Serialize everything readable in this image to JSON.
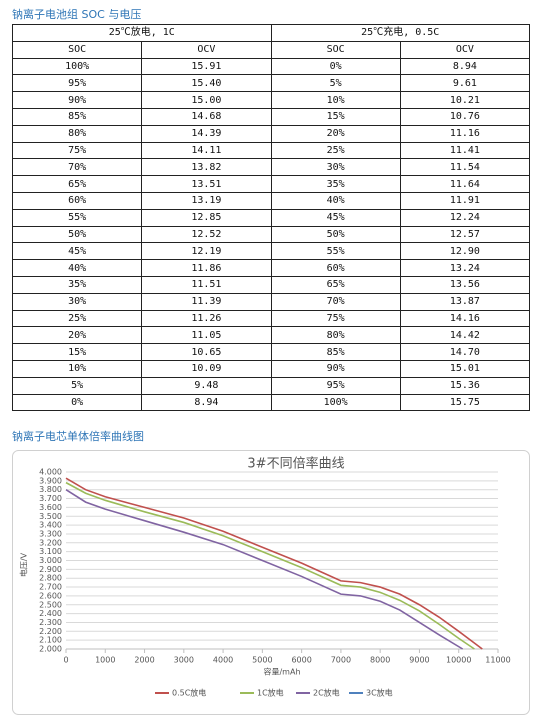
{
  "header": {
    "title": "钠离子电池组 SOC 与电压"
  },
  "table": {
    "groups": [
      "25℃放电, 1C",
      "25℃充电, 0.5C"
    ],
    "columns": [
      "SOC",
      "OCV",
      "SOC",
      "OCV"
    ],
    "rows": [
      [
        "100%",
        "15.91",
        "0%",
        "8.94"
      ],
      [
        "95%",
        "15.40",
        "5%",
        "9.61"
      ],
      [
        "90%",
        "15.00",
        "10%",
        "10.21"
      ],
      [
        "85%",
        "14.68",
        "15%",
        "10.76"
      ],
      [
        "80%",
        "14.39",
        "20%",
        "11.16"
      ],
      [
        "75%",
        "14.11",
        "25%",
        "11.41"
      ],
      [
        "70%",
        "13.82",
        "30%",
        "11.54"
      ],
      [
        "65%",
        "13.51",
        "35%",
        "11.64"
      ],
      [
        "60%",
        "13.19",
        "40%",
        "11.91"
      ],
      [
        "55%",
        "12.85",
        "45%",
        "12.24"
      ],
      [
        "50%",
        "12.52",
        "50%",
        "12.57"
      ],
      [
        "45%",
        "12.19",
        "55%",
        "12.90"
      ],
      [
        "40%",
        "11.86",
        "60%",
        "13.24"
      ],
      [
        "35%",
        "11.51",
        "65%",
        "13.56"
      ],
      [
        "30%",
        "11.39",
        "70%",
        "13.87"
      ],
      [
        "25%",
        "11.26",
        "75%",
        "14.16"
      ],
      [
        "20%",
        "11.05",
        "80%",
        "14.42"
      ],
      [
        "15%",
        "10.65",
        "85%",
        "14.70"
      ],
      [
        "10%",
        "10.09",
        "90%",
        "15.01"
      ],
      [
        "5%",
        "9.48",
        "95%",
        "15.36"
      ],
      [
        "0%",
        "8.94",
        "100%",
        "15.75"
      ]
    ]
  },
  "chart_section": {
    "title": "钠离子电芯单体倍率曲线图"
  },
  "chart_data": {
    "type": "line",
    "title": "3#不同倍率曲线",
    "x_label": "容量/mAh",
    "y_label": "电压/V",
    "xlim": [
      0,
      11000
    ],
    "xticks": [
      0,
      1000,
      2000,
      3000,
      4000,
      5000,
      6000,
      7000,
      8000,
      9000,
      10000,
      11000
    ],
    "ylim": [
      2,
      4
    ],
    "yticks": [
      {
        "value": 2,
        "label": "2.000"
      },
      {
        "value": 2.1,
        "label": "2.100"
      },
      {
        "value": 2.2,
        "label": "2.200"
      },
      {
        "value": 2.3,
        "label": "2.300"
      },
      {
        "value": 2.4,
        "label": "2.400"
      },
      {
        "value": 2.5,
        "label": "2.500"
      },
      {
        "value": 2.6,
        "label": "2.600"
      },
      {
        "value": 2.7,
        "label": "2.700"
      },
      {
        "value": 2.8,
        "label": "2.800"
      },
      {
        "value": 2.9,
        "label": "2.900"
      },
      {
        "value": 3,
        "label": "3.000"
      },
      {
        "value": 3.1,
        "label": "3.100"
      },
      {
        "value": 3.2,
        "label": "3.200"
      },
      {
        "value": 3.3,
        "label": "3.300"
      },
      {
        "value": 3.4,
        "label": "3.400"
      },
      {
        "value": 3.5,
        "label": "3.500"
      },
      {
        "value": 3.6,
        "label": "3.600"
      },
      {
        "value": 3.7,
        "label": "3.700"
      },
      {
        "value": 3.8,
        "label": "3.800"
      },
      {
        "value": 3.9,
        "label": "3.900"
      },
      {
        "value": 4,
        "label": "4.000"
      }
    ],
    "grid": true,
    "series": [
      {
        "name": "0.5C放电",
        "color": "#c0504d",
        "x": [
          0,
          500,
          1000,
          2000,
          3000,
          4000,
          5000,
          6000,
          6500,
          7000,
          7500,
          8000,
          8500,
          9000,
          9500,
          10000,
          10600
        ],
        "values": [
          3.93,
          3.8,
          3.72,
          3.6,
          3.48,
          3.33,
          3.15,
          2.97,
          2.87,
          2.77,
          2.75,
          2.7,
          2.62,
          2.5,
          2.36,
          2.2,
          2.0
        ]
      },
      {
        "name": "1C放电",
        "color": "#9bbb59",
        "x": [
          0,
          500,
          1000,
          2000,
          3000,
          4000,
          5000,
          6000,
          7000,
          7500,
          8000,
          8500,
          9000,
          9500,
          10000,
          10400
        ],
        "values": [
          3.88,
          3.76,
          3.68,
          3.55,
          3.43,
          3.28,
          3.1,
          2.92,
          2.72,
          2.7,
          2.64,
          2.55,
          2.43,
          2.28,
          2.12,
          2.0
        ]
      },
      {
        "name": "2C放电",
        "color": "#8064a2",
        "x": [
          0,
          500,
          1000,
          2000,
          3000,
          4000,
          5000,
          6000,
          7000,
          7500,
          8000,
          8500,
          9000,
          9500,
          10100
        ],
        "values": [
          3.8,
          3.66,
          3.58,
          3.45,
          3.32,
          3.18,
          3.0,
          2.82,
          2.62,
          2.6,
          2.54,
          2.44,
          2.3,
          2.16,
          2.0
        ]
      },
      {
        "name": "3C放电",
        "color": "#4f81bd",
        "x": [],
        "values": []
      }
    ]
  }
}
